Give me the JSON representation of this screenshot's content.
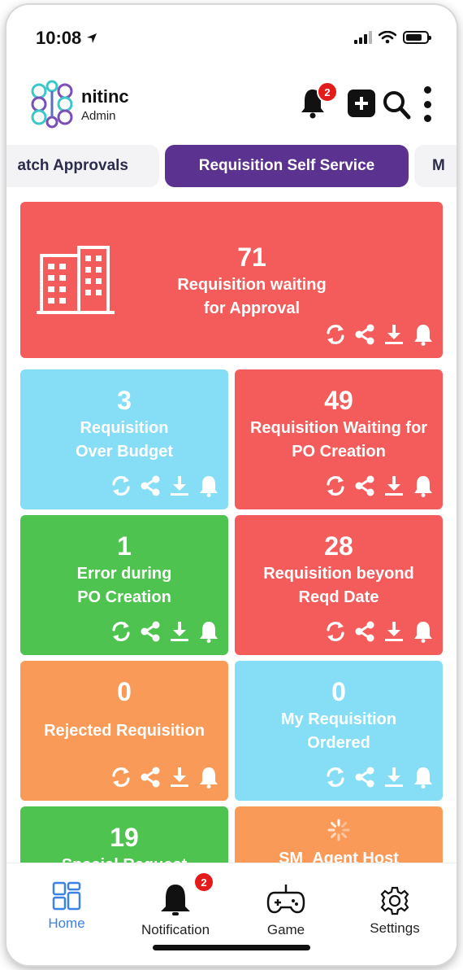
{
  "status": {
    "time": "10:08"
  },
  "header": {
    "org_name": "nitinc",
    "org_role": "Admin",
    "notification_count": "2",
    "icons": [
      "bell-icon",
      "plus-icon",
      "search-icon",
      "more-vertical-icon"
    ]
  },
  "tabs": [
    {
      "label": "atch Approvals",
      "active": false
    },
    {
      "label": "Requisition Self Service",
      "active": true
    },
    {
      "label": "M",
      "active": false
    }
  ],
  "cards": [
    {
      "count": "71",
      "label1": "Requisition waiting",
      "label2": "for Approval",
      "color": "#f45c5c"
    },
    {
      "count": "3",
      "label1": "Requisition",
      "label2": "Over Budget",
      "color": "#86def6"
    },
    {
      "count": "49",
      "label1": "Requisition Waiting for",
      "label2": "PO Creation",
      "color": "#f45c5c"
    },
    {
      "count": "1",
      "label1": "Error during",
      "label2": "PO Creation",
      "color": "#4ec34f"
    },
    {
      "count": "28",
      "label1": "Requisition beyond",
      "label2": "Reqd Date",
      "color": "#f45c5c"
    },
    {
      "count": "0",
      "label1": "Rejected Requisition",
      "label2": "",
      "color": "#f99a58"
    },
    {
      "count": "0",
      "label1": "My Requisition",
      "label2": "Ordered",
      "color": "#86def6"
    },
    {
      "count": "19",
      "label1": "Special Request",
      "label2": "",
      "color": "#4ec34f"
    },
    {
      "count": "",
      "label1": "SM_Agent Host",
      "label2": "",
      "color": "#f99a58"
    }
  ],
  "card_actions": [
    "refresh-icon",
    "share-icon",
    "download-icon",
    "bell-icon"
  ],
  "nav": {
    "items": [
      {
        "label": "Home",
        "icon": "home-grid-icon",
        "active": true
      },
      {
        "label": "Notification",
        "icon": "bell-icon",
        "badge": "2"
      },
      {
        "label": "Game",
        "icon": "gamepad-icon"
      },
      {
        "label": "Settings",
        "icon": "gear-icon"
      }
    ],
    "active_color": "#3b82e6"
  }
}
